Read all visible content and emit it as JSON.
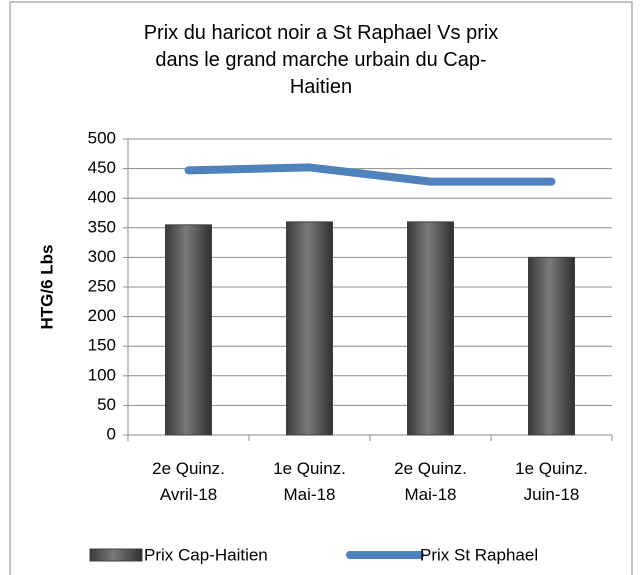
{
  "chart_data": {
    "type": "bar_line",
    "title": "Prix du haricot noir a St Raphael Vs prix dans le grand marche urbain du Cap-Haitien",
    "y_label": "HTG/6 Lbs",
    "categories": [
      "2e Quinz. Avril-18",
      "1e Quinz. Mai-18",
      "2e Quinz. Mai-18",
      "1e Quinz. Juin-18"
    ],
    "series": [
      {
        "name": "Prix Cap-Haitien",
        "type": "bar",
        "color": "#595959",
        "values": [
          355,
          360,
          360,
          300
        ]
      },
      {
        "name": "Prix St Raphael",
        "type": "line",
        "color": "#4f81bd",
        "values": [
          447,
          452,
          428,
          428
        ]
      }
    ],
    "ylim": [
      0,
      500
    ],
    "yticks": [
      0,
      50,
      100,
      150,
      200,
      250,
      300,
      350,
      400,
      450,
      500
    ],
    "grid": true,
    "legend": "bottom"
  }
}
